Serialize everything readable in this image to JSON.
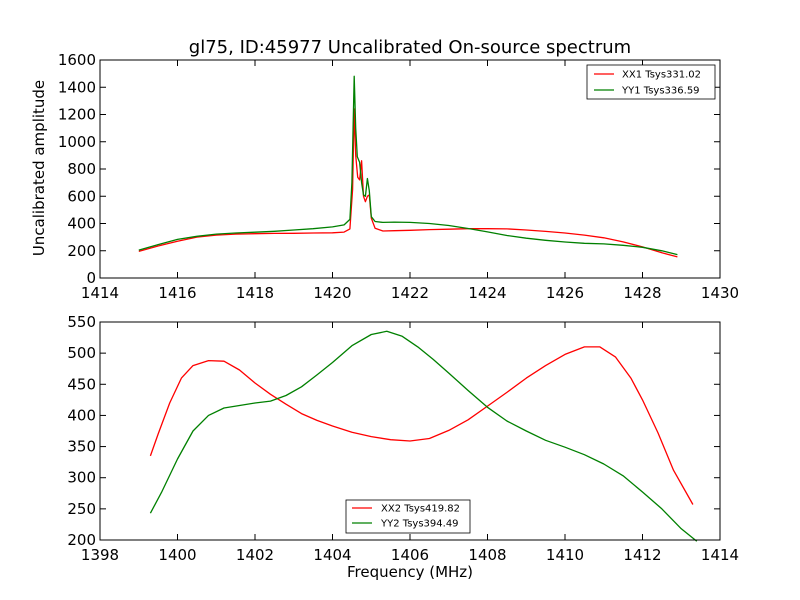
{
  "chart_data": [
    {
      "type": "line",
      "title": "gl75, ID:45977 Uncalibrated On-source spectrum",
      "xlabel": "",
      "ylabel": "Uncalibrated amplitude",
      "xlim": [
        1414,
        1430
      ],
      "ylim": [
        0,
        1600
      ],
      "xticks": [
        1414,
        1416,
        1418,
        1420,
        1422,
        1424,
        1426,
        1428,
        1430
      ],
      "yticks": [
        0,
        200,
        400,
        600,
        800,
        1000,
        1200,
        1400,
        1600
      ],
      "grid": false,
      "legend": "top-right",
      "series": [
        {
          "name": "XX1 Tsys331.02",
          "color": "#ff0000",
          "points": [
            [
              1415.0,
              195
            ],
            [
              1415.5,
              235
            ],
            [
              1416.0,
              270
            ],
            [
              1416.5,
              300
            ],
            [
              1417.0,
              315
            ],
            [
              1417.5,
              322
            ],
            [
              1418.0,
              325
            ],
            [
              1418.5,
              327
            ],
            [
              1419.0,
              328
            ],
            [
              1419.5,
              330
            ],
            [
              1420.0,
              332
            ],
            [
              1420.3,
              337
            ],
            [
              1420.45,
              360
            ],
            [
              1420.52,
              650
            ],
            [
              1420.56,
              1240
            ],
            [
              1420.6,
              900
            ],
            [
              1420.65,
              740
            ],
            [
              1420.7,
              720
            ],
            [
              1420.75,
              860
            ],
            [
              1420.8,
              600
            ],
            [
              1420.85,
              560
            ],
            [
              1420.9,
              600
            ],
            [
              1420.95,
              610
            ],
            [
              1421.0,
              440
            ],
            [
              1421.1,
              365
            ],
            [
              1421.3,
              345
            ],
            [
              1421.6,
              347
            ],
            [
              1422.0,
              350
            ],
            [
              1422.5,
              355
            ],
            [
              1423.0,
              358
            ],
            [
              1423.5,
              362
            ],
            [
              1424.0,
              362
            ],
            [
              1424.5,
              360
            ],
            [
              1425.0,
              352
            ],
            [
              1425.5,
              342
            ],
            [
              1426.0,
              330
            ],
            [
              1426.5,
              315
            ],
            [
              1427.0,
              295
            ],
            [
              1427.5,
              265
            ],
            [
              1428.0,
              228
            ],
            [
              1428.5,
              185
            ],
            [
              1428.9,
              155
            ]
          ]
        },
        {
          "name": "YY1 Tsys336.59",
          "color": "#008000",
          "points": [
            [
              1415.0,
              205
            ],
            [
              1415.5,
              245
            ],
            [
              1416.0,
              283
            ],
            [
              1416.5,
              306
            ],
            [
              1417.0,
              322
            ],
            [
              1417.5,
              330
            ],
            [
              1418.0,
              336
            ],
            [
              1418.5,
              343
            ],
            [
              1419.0,
              352
            ],
            [
              1419.5,
              362
            ],
            [
              1420.0,
              375
            ],
            [
              1420.3,
              390
            ],
            [
              1420.45,
              430
            ],
            [
              1420.5,
              700
            ],
            [
              1420.56,
              1480
            ],
            [
              1420.6,
              1100
            ],
            [
              1420.64,
              890
            ],
            [
              1420.7,
              850
            ],
            [
              1420.75,
              700
            ],
            [
              1420.8,
              610
            ],
            [
              1420.85,
              600
            ],
            [
              1420.9,
              730
            ],
            [
              1420.95,
              640
            ],
            [
              1421.0,
              450
            ],
            [
              1421.1,
              415
            ],
            [
              1421.3,
              408
            ],
            [
              1421.6,
              410
            ],
            [
              1422.0,
              408
            ],
            [
              1422.5,
              400
            ],
            [
              1423.0,
              385
            ],
            [
              1423.5,
              363
            ],
            [
              1424.0,
              338
            ],
            [
              1424.5,
              312
            ],
            [
              1425.0,
              292
            ],
            [
              1425.5,
              277
            ],
            [
              1426.0,
              264
            ],
            [
              1426.5,
              255
            ],
            [
              1427.0,
              250
            ],
            [
              1427.5,
              240
            ],
            [
              1428.0,
              225
            ],
            [
              1428.5,
              200
            ],
            [
              1428.9,
              172
            ]
          ]
        }
      ]
    },
    {
      "type": "line",
      "title": "",
      "xlabel": "Frequency (MHz)",
      "ylabel": "",
      "xlim": [
        1398,
        1414
      ],
      "ylim": [
        200,
        550
      ],
      "xticks": [
        1398,
        1400,
        1402,
        1404,
        1406,
        1408,
        1410,
        1412,
        1414
      ],
      "yticks": [
        200,
        250,
        300,
        350,
        400,
        450,
        500,
        550
      ],
      "grid": false,
      "legend": "bottom-center",
      "series": [
        {
          "name": "XX2 Tsys419.82",
          "color": "#ff0000",
          "points": [
            [
              1399.3,
              335
            ],
            [
              1399.5,
              370
            ],
            [
              1399.8,
              420
            ],
            [
              1400.1,
              460
            ],
            [
              1400.4,
              480
            ],
            [
              1400.8,
              488
            ],
            [
              1401.2,
              487
            ],
            [
              1401.6,
              473
            ],
            [
              1402.0,
              452
            ],
            [
              1402.4,
              434
            ],
            [
              1402.8,
              418
            ],
            [
              1403.2,
              403
            ],
            [
              1403.6,
              392
            ],
            [
              1404.0,
              383
            ],
            [
              1404.5,
              373
            ],
            [
              1405.0,
              366
            ],
            [
              1405.5,
              361
            ],
            [
              1406.0,
              359
            ],
            [
              1406.5,
              363
            ],
            [
              1407.0,
              376
            ],
            [
              1407.5,
              393
            ],
            [
              1408.0,
              415
            ],
            [
              1408.5,
              437
            ],
            [
              1409.0,
              460
            ],
            [
              1409.5,
              480
            ],
            [
              1410.0,
              498
            ],
            [
              1410.5,
              510
            ],
            [
              1410.9,
              510
            ],
            [
              1411.3,
              494
            ],
            [
              1411.7,
              460
            ],
            [
              1412.0,
              425
            ],
            [
              1412.4,
              372
            ],
            [
              1412.8,
              312
            ],
            [
              1413.3,
              257
            ]
          ]
        },
        {
          "name": "YY2 Tsys394.49",
          "color": "#008000",
          "points": [
            [
              1399.3,
              243
            ],
            [
              1399.6,
              278
            ],
            [
              1400.0,
              330
            ],
            [
              1400.4,
              375
            ],
            [
              1400.8,
              400
            ],
            [
              1401.2,
              412
            ],
            [
              1401.6,
              416
            ],
            [
              1402.0,
              420
            ],
            [
              1402.4,
              423
            ],
            [
              1402.8,
              432
            ],
            [
              1403.2,
              446
            ],
            [
              1403.6,
              465
            ],
            [
              1404.0,
              485
            ],
            [
              1404.5,
              512
            ],
            [
              1405.0,
              530
            ],
            [
              1405.4,
              535
            ],
            [
              1405.8,
              527
            ],
            [
              1406.2,
              510
            ],
            [
              1406.6,
              490
            ],
            [
              1407.0,
              468
            ],
            [
              1407.5,
              440
            ],
            [
              1408.0,
              413
            ],
            [
              1408.5,
              391
            ],
            [
              1409.0,
              375
            ],
            [
              1409.5,
              360
            ],
            [
              1410.0,
              349
            ],
            [
              1410.5,
              337
            ],
            [
              1411.0,
              322
            ],
            [
              1411.5,
              303
            ],
            [
              1412.0,
              277
            ],
            [
              1412.5,
              250
            ],
            [
              1413.0,
              218
            ],
            [
              1413.4,
              198
            ]
          ]
        }
      ]
    }
  ]
}
